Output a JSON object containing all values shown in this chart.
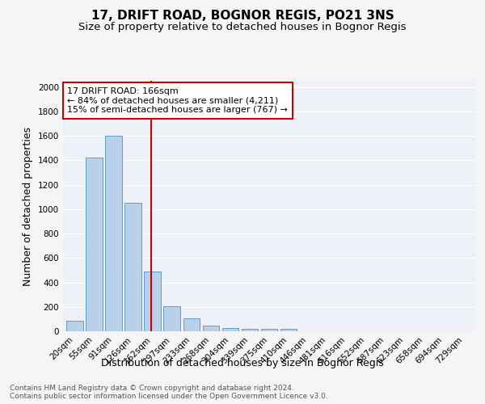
{
  "title": "17, DRIFT ROAD, BOGNOR REGIS, PO21 3NS",
  "subtitle": "Size of property relative to detached houses in Bognor Regis",
  "xlabel": "Distribution of detached houses by size in Bognor Regis",
  "ylabel": "Number of detached properties",
  "categories": [
    "20sqm",
    "55sqm",
    "91sqm",
    "126sqm",
    "162sqm",
    "197sqm",
    "233sqm",
    "268sqm",
    "304sqm",
    "339sqm",
    "375sqm",
    "410sqm",
    "446sqm",
    "481sqm",
    "516sqm",
    "552sqm",
    "587sqm",
    "623sqm",
    "658sqm",
    "694sqm",
    "729sqm"
  ],
  "values": [
    85,
    1420,
    1600,
    1050,
    490,
    205,
    105,
    45,
    28,
    22,
    20,
    18,
    0,
    0,
    0,
    0,
    0,
    0,
    0,
    0,
    0
  ],
  "bar_color": "#b8d0e8",
  "bar_edge_color": "#5a9fd4",
  "marker_line_color": "#cc0000",
  "annotation_line1": "17 DRIFT ROAD: 166sqm",
  "annotation_line2": "← 84% of detached houses are smaller (4,211)",
  "annotation_line3": "15% of semi-detached houses are larger (767) →",
  "annotation_box_color": "#ffffff",
  "annotation_box_edge": "#cc0000",
  "ylim": [
    0,
    2050
  ],
  "yticks": [
    0,
    200,
    400,
    600,
    800,
    1000,
    1200,
    1400,
    1600,
    1800,
    2000
  ],
  "footer_line1": "Contains HM Land Registry data © Crown copyright and database right 2024.",
  "footer_line2": "Contains public sector information licensed under the Open Government Licence v3.0.",
  "bg_color": "#eef2f8",
  "fig_bg_color": "#f5f5f5",
  "grid_color": "#ffffff",
  "title_fontsize": 11,
  "subtitle_fontsize": 9.5,
  "tick_fontsize": 7.5,
  "ylabel_fontsize": 9,
  "xlabel_fontsize": 9,
  "footer_fontsize": 6.5,
  "annot_fontsize": 8
}
